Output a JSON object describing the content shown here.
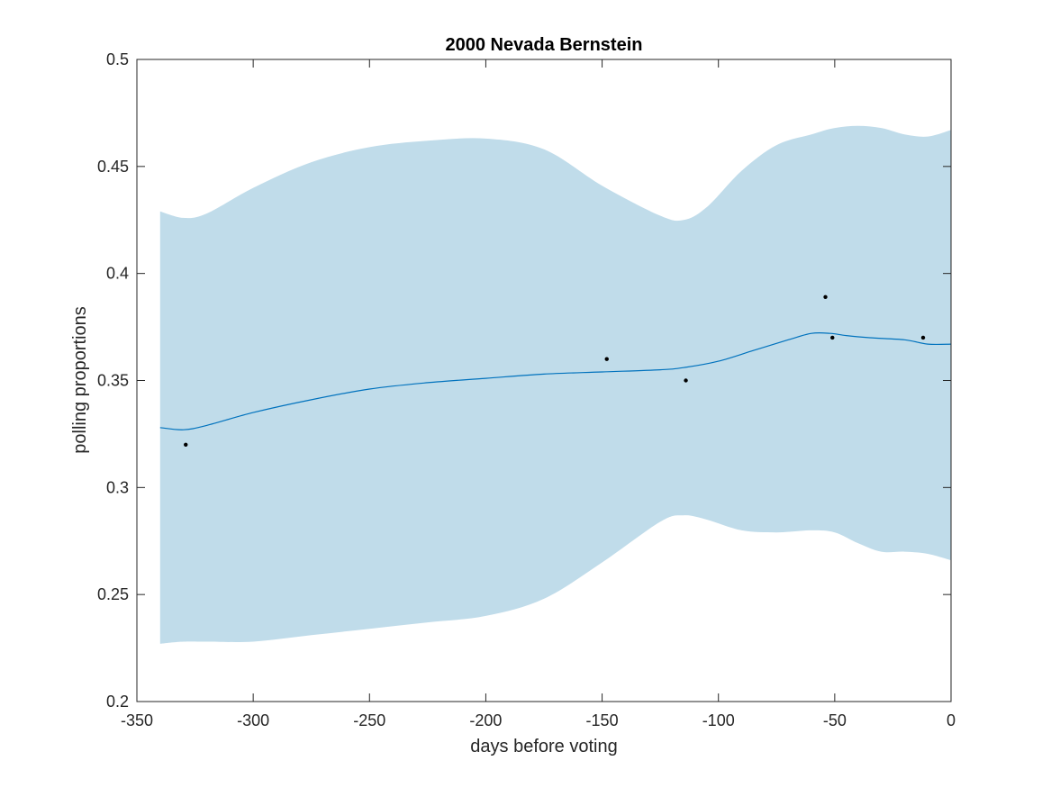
{
  "chart_data": {
    "type": "line",
    "title": "2000 Nevada Bernstein",
    "xlabel": "days before voting",
    "ylabel": "polling proportions",
    "xlim": [
      -350,
      0
    ],
    "ylim": [
      0.2,
      0.5
    ],
    "xticks": [
      -350,
      -300,
      -250,
      -200,
      -150,
      -100,
      -50,
      0
    ],
    "yticks": [
      0.2,
      0.25,
      0.3,
      0.35,
      0.4,
      0.45,
      0.5
    ],
    "xtick_labels": [
      "-350",
      "-300",
      "-250",
      "-200",
      "-150",
      "-100",
      "-50",
      "0"
    ],
    "ytick_labels": [
      "0.2",
      "0.25",
      "0.3",
      "0.35",
      "0.4",
      "0.45",
      "0.5"
    ],
    "grid": false,
    "legend": "none",
    "colors": {
      "band": "#c0dcea",
      "line": "#0072bd",
      "points": "#000000",
      "axes": "#262626"
    },
    "band": {
      "x": [
        -340,
        -330,
        -320,
        -300,
        -275,
        -250,
        -225,
        -200,
        -175,
        -150,
        -125,
        -115,
        -105,
        -90,
        -75,
        -60,
        -50,
        -40,
        -30,
        -20,
        -10,
        0
      ],
      "upper": [
        0.429,
        0.426,
        0.428,
        0.44,
        0.452,
        0.459,
        0.462,
        0.463,
        0.458,
        0.441,
        0.427,
        0.425,
        0.431,
        0.448,
        0.46,
        0.465,
        0.468,
        0.469,
        0.468,
        0.465,
        0.464,
        0.467
      ],
      "lower": [
        0.227,
        0.228,
        0.228,
        0.228,
        0.231,
        0.234,
        0.237,
        0.24,
        0.248,
        0.265,
        0.284,
        0.287,
        0.285,
        0.28,
        0.279,
        0.28,
        0.279,
        0.274,
        0.27,
        0.27,
        0.269,
        0.266
      ]
    },
    "series": [
      {
        "x": [
          -340,
          -330,
          -320,
          -300,
          -275,
          -250,
          -225,
          -200,
          -175,
          -150,
          -125,
          -115,
          -100,
          -85,
          -70,
          -60,
          -52,
          -45,
          -35,
          -20,
          -10,
          0
        ],
        "values": [
          0.328,
          0.327,
          0.329,
          0.335,
          0.341,
          0.346,
          0.349,
          0.351,
          0.353,
          0.354,
          0.355,
          0.356,
          0.359,
          0.364,
          0.369,
          0.372,
          0.372,
          0.371,
          0.37,
          0.369,
          0.367,
          0.367
        ]
      }
    ],
    "points": {
      "x": [
        -329,
        -148,
        -114,
        -54,
        -51,
        -12
      ],
      "values": [
        0.32,
        0.36,
        0.35,
        0.389,
        0.37,
        0.37
      ]
    }
  }
}
